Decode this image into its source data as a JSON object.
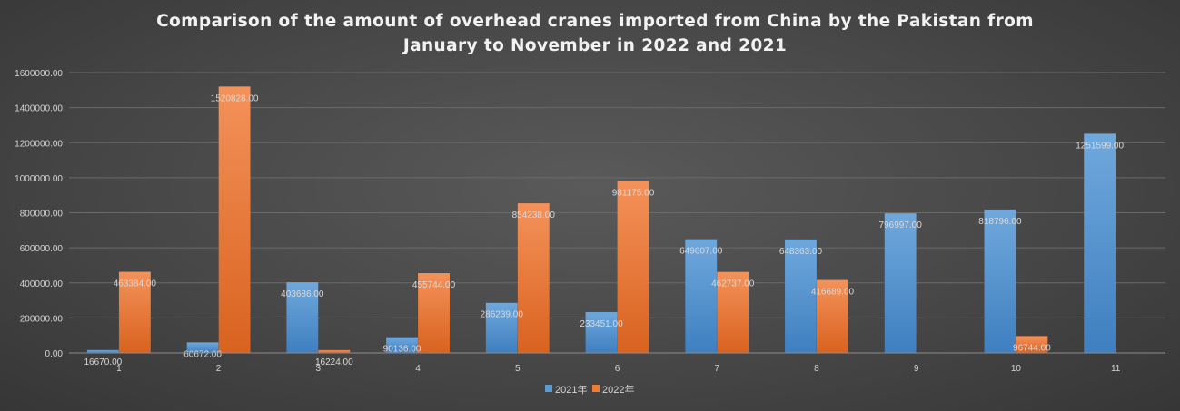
{
  "chart_data": {
    "type": "bar",
    "title": "Comparison of the amount of overhead cranes imported from China by the Pakistan from January to November in 2022 and 2021",
    "xlabel": "",
    "ylabel": "",
    "categories": [
      "1",
      "2",
      "3",
      "4",
      "5",
      "6",
      "7",
      "8",
      "9",
      "10",
      "11"
    ],
    "series": [
      {
        "name": "2021年",
        "color": "#5b9bd5",
        "values": [
          16670.0,
          60672.0,
          403686.0,
          90136.0,
          286239.0,
          233451.0,
          649607.0,
          648363.0,
          796997.0,
          818796.0,
          1251599.0
        ],
        "labels": [
          "16670.00",
          "60672.00",
          "403686.00",
          "90136.00",
          "286239.00",
          "233451.00",
          "649607.00",
          "648363.00",
          "796997.00",
          "818796.00",
          "1251599.00"
        ]
      },
      {
        "name": "2022年",
        "color": "#ed7d31",
        "values": [
          463384.0,
          1520828.0,
          16224.0,
          455744.0,
          854238.0,
          981175.0,
          462737.0,
          416689.0,
          null,
          96744.0,
          null
        ],
        "labels": [
          "463384.00",
          "1520828.00",
          "16224.00",
          "455744.00",
          "854238.00",
          "981175.00",
          "462737.00",
          "416689.00",
          "",
          "96744.00",
          ""
        ]
      }
    ],
    "ylim": [
      0,
      1600000
    ],
    "yticks": [
      0,
      200000,
      400000,
      600000,
      800000,
      1000000,
      1200000,
      1400000,
      1600000
    ],
    "ytick_labels": [
      "0.00",
      "200000.00",
      "400000.00",
      "600000.00",
      "800000.00",
      "1000000.00",
      "1200000.00",
      "1400000.00",
      "1600000.00"
    ],
    "grid": true,
    "legend_position": "bottom"
  }
}
